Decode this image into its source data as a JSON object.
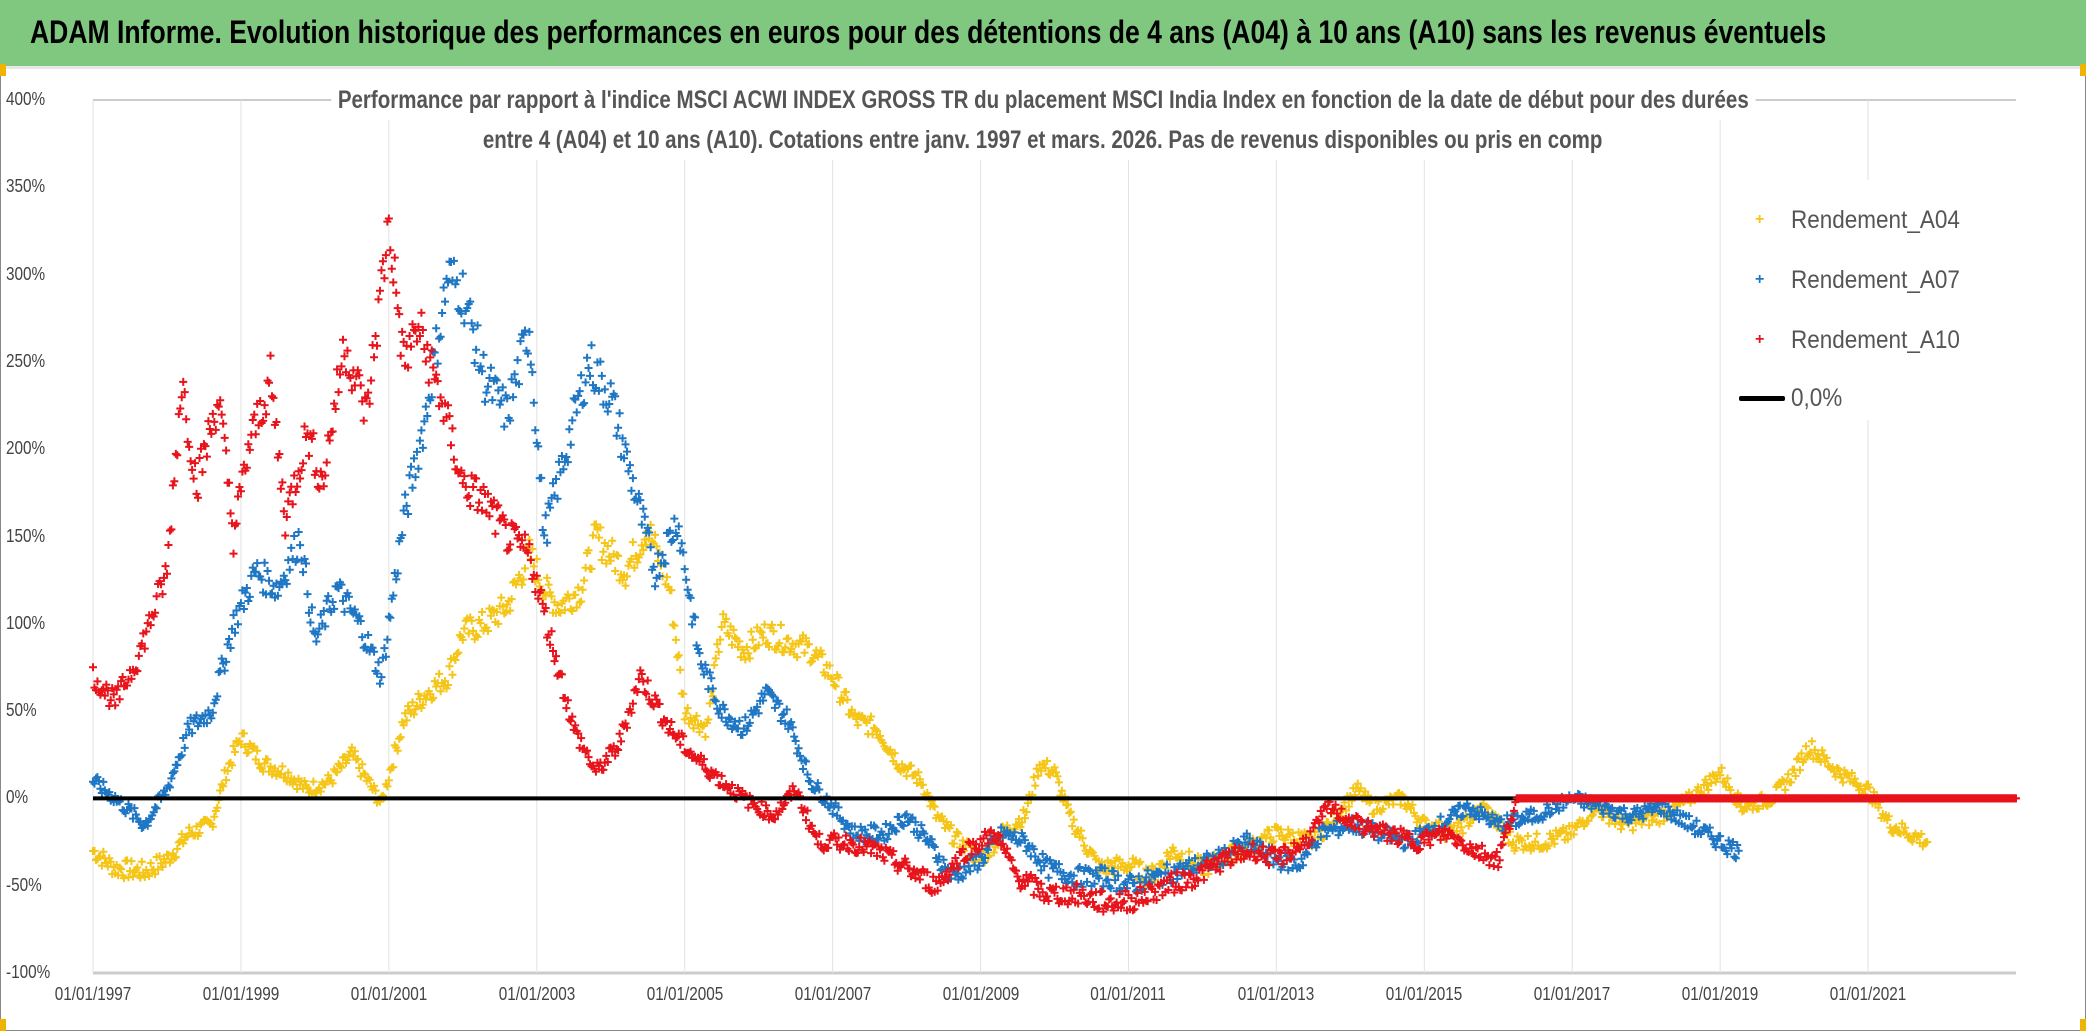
{
  "header": {
    "title": "ADAM Informe. Evolution historique des performances en euros pour des détentions de 4 ans (A04) à 10 ans (A10) sans les revenus éventuels"
  },
  "chart_data": {
    "type": "scatter",
    "title_lines": [
      "Performance par rapport à l'indice MSCI ACWI INDEX GROSS TR  du placement MSCI India Index en fonction de la date de début pour des durées",
      "entre 4 (A04) et 10 ans (A10). Cotations entre janv. 1997 et mars. 2026. Pas de revenus disponibles ou pris en comp"
    ],
    "xlabel": "",
    "ylabel": "",
    "xlim": [
      1997,
      2023
    ],
    "ylim": [
      -100,
      400
    ],
    "x_ticks": [
      1997,
      1999,
      2001,
      2003,
      2005,
      2007,
      2009,
      2011,
      2013,
      2015,
      2017,
      2019,
      2021
    ],
    "x_tick_labels": [
      "01/01/1997",
      "01/01/1999",
      "01/01/2001",
      "01/01/2003",
      "01/01/2005",
      "01/01/2007",
      "01/01/2009",
      "01/01/2011",
      "01/01/2013",
      "01/01/2015",
      "01/01/2017",
      "01/01/2019",
      "01/01/2021"
    ],
    "y_ticks": [
      400,
      350,
      300,
      250,
      200,
      150,
      100,
      50,
      0,
      -50,
      -100
    ],
    "y_tick_labels": [
      "400%",
      "350%",
      "300%",
      "250%",
      "200%",
      "150%",
      "100%",
      "50%",
      "0%",
      "-50%",
      "-100%"
    ],
    "grid": "vertical",
    "legend_position": "top-right",
    "series": [
      {
        "name": "Rendement_A04",
        "color": "#f5c518",
        "points": [
          [
            1997.0,
            -30
          ],
          [
            1997.3,
            -40
          ],
          [
            1997.7,
            -42
          ],
          [
            1998.0,
            -35
          ],
          [
            1998.3,
            -20
          ],
          [
            1998.6,
            -15
          ],
          [
            1998.8,
            15
          ],
          [
            1999.0,
            35
          ],
          [
            1999.3,
            20
          ],
          [
            1999.6,
            15
          ],
          [
            1999.9,
            5
          ],
          [
            2000.2,
            10
          ],
          [
            2000.5,
            25
          ],
          [
            2000.9,
            -3
          ],
          [
            2001.2,
            45
          ],
          [
            2001.5,
            60
          ],
          [
            2001.8,
            70
          ],
          [
            2002.0,
            95
          ],
          [
            2002.3,
            100
          ],
          [
            2002.6,
            110
          ],
          [
            2002.9,
            140
          ],
          [
            2003.1,
            120
          ],
          [
            2003.3,
            110
          ],
          [
            2003.6,
            120
          ],
          [
            2003.8,
            150
          ],
          [
            2004.2,
            130
          ],
          [
            2004.5,
            155
          ],
          [
            2004.8,
            120
          ],
          [
            2005.0,
            50
          ],
          [
            2005.3,
            40
          ],
          [
            2005.5,
            100
          ],
          [
            2005.8,
            85
          ],
          [
            2006.1,
            95
          ],
          [
            2006.4,
            90
          ],
          [
            2006.7,
            85
          ],
          [
            2007.0,
            70
          ],
          [
            2007.3,
            45
          ],
          [
            2007.6,
            40
          ],
          [
            2007.9,
            20
          ],
          [
            2008.2,
            10
          ],
          [
            2008.4,
            -10
          ],
          [
            2008.7,
            -25
          ],
          [
            2009.0,
            -35
          ],
          [
            2009.3,
            -20
          ],
          [
            2009.6,
            -10
          ],
          [
            2009.8,
            20
          ],
          [
            2010.0,
            15
          ],
          [
            2010.2,
            -10
          ],
          [
            2010.6,
            -40
          ],
          [
            2011.0,
            -38
          ],
          [
            2011.3,
            -45
          ],
          [
            2011.6,
            -30
          ],
          [
            2012.0,
            -40
          ],
          [
            2012.5,
            -30
          ],
          [
            2013.0,
            -20
          ],
          [
            2013.5,
            -25
          ],
          [
            2013.8,
            -10
          ],
          [
            2014.1,
            5
          ],
          [
            2014.3,
            -5
          ],
          [
            2014.7,
            0
          ],
          [
            2015.0,
            -15
          ],
          [
            2015.4,
            -20
          ],
          [
            2015.8,
            -5
          ],
          [
            2016.2,
            -25
          ],
          [
            2016.6,
            -25
          ],
          [
            2017.0,
            -20
          ],
          [
            2017.3,
            -5
          ],
          [
            2017.7,
            -15
          ],
          [
            2018.2,
            -10
          ],
          [
            2018.6,
            0
          ],
          [
            2019.0,
            15
          ],
          [
            2019.3,
            -5
          ],
          [
            2019.7,
            0
          ],
          [
            2020.0,
            15
          ],
          [
            2020.2,
            30
          ],
          [
            2020.6,
            15
          ],
          [
            2021.0,
            5
          ],
          [
            2021.3,
            -15
          ],
          [
            2021.8,
            -25
          ]
        ]
      },
      {
        "name": "Rendement_A07",
        "color": "#1f77c4",
        "points": [
          [
            1997.0,
            10
          ],
          [
            1997.3,
            0
          ],
          [
            1997.7,
            -15
          ],
          [
            1998.0,
            5
          ],
          [
            1998.3,
            40
          ],
          [
            1998.6,
            50
          ],
          [
            1998.9,
            100
          ],
          [
            1999.2,
            130
          ],
          [
            1999.5,
            120
          ],
          [
            1999.8,
            150
          ],
          [
            2000.0,
            90
          ],
          [
            2000.3,
            120
          ],
          [
            2000.6,
            100
          ],
          [
            2000.9,
            70
          ],
          [
            2001.2,
            160
          ],
          [
            2001.5,
            220
          ],
          [
            2001.8,
            300
          ],
          [
            2002.0,
            290
          ],
          [
            2002.3,
            240
          ],
          [
            2002.6,
            220
          ],
          [
            2002.9,
            270
          ],
          [
            2003.1,
            150
          ],
          [
            2003.4,
            200
          ],
          [
            2003.7,
            250
          ],
          [
            2004.0,
            230
          ],
          [
            2004.3,
            180
          ],
          [
            2004.6,
            130
          ],
          [
            2004.9,
            160
          ],
          [
            2005.2,
            80
          ],
          [
            2005.5,
            50
          ],
          [
            2005.8,
            40
          ],
          [
            2006.1,
            60
          ],
          [
            2006.4,
            45
          ],
          [
            2006.7,
            10
          ],
          [
            2007.0,
            -5
          ],
          [
            2007.3,
            -20
          ],
          [
            2007.7,
            -20
          ],
          [
            2008.0,
            -10
          ],
          [
            2008.3,
            -25
          ],
          [
            2008.6,
            -45
          ],
          [
            2009.0,
            -35
          ],
          [
            2009.3,
            -20
          ],
          [
            2009.6,
            -25
          ],
          [
            2009.9,
            -40
          ],
          [
            2010.3,
            -45
          ],
          [
            2010.7,
            -45
          ],
          [
            2011.0,
            -50
          ],
          [
            2011.4,
            -45
          ],
          [
            2011.8,
            -40
          ],
          [
            2012.2,
            -35
          ],
          [
            2012.6,
            -25
          ],
          [
            2013.0,
            -35
          ],
          [
            2013.3,
            -38
          ],
          [
            2013.6,
            -20
          ],
          [
            2014.0,
            -15
          ],
          [
            2014.4,
            -20
          ],
          [
            2014.8,
            -25
          ],
          [
            2015.2,
            -15
          ],
          [
            2015.6,
            -5
          ],
          [
            2016.0,
            -15
          ],
          [
            2016.5,
            -10
          ],
          [
            2017.0,
            0
          ],
          [
            2017.4,
            -5
          ],
          [
            2017.8,
            -10
          ],
          [
            2018.2,
            -5
          ],
          [
            2018.6,
            -15
          ],
          [
            2019.0,
            -25
          ],
          [
            2019.25,
            -30
          ]
        ]
      },
      {
        "name": "Rendement_A10",
        "color": "#e8141c",
        "points": [
          [
            1997.0,
            70
          ],
          [
            1997.3,
            55
          ],
          [
            1997.6,
            80
          ],
          [
            1998.0,
            130
          ],
          [
            1998.2,
            240
          ],
          [
            1998.4,
            180
          ],
          [
            1998.7,
            230
          ],
          [
            1998.9,
            150
          ],
          [
            1999.1,
            200
          ],
          [
            1999.4,
            240
          ],
          [
            1999.6,
            160
          ],
          [
            1999.9,
            210
          ],
          [
            2000.1,
            180
          ],
          [
            2000.4,
            260
          ],
          [
            2000.7,
            220
          ],
          [
            2001.0,
            330
          ],
          [
            2001.2,
            250
          ],
          [
            2001.4,
            270
          ],
          [
            2001.7,
            230
          ],
          [
            2002.0,
            180
          ],
          [
            2002.3,
            170
          ],
          [
            2002.6,
            150
          ],
          [
            2002.9,
            140
          ],
          [
            2003.2,
            90
          ],
          [
            2003.5,
            40
          ],
          [
            2003.8,
            15
          ],
          [
            2004.1,
            30
          ],
          [
            2004.4,
            70
          ],
          [
            2004.8,
            40
          ],
          [
            2005.1,
            25
          ],
          [
            2005.5,
            10
          ],
          [
            2005.8,
            0
          ],
          [
            2006.2,
            -10
          ],
          [
            2006.5,
            5
          ],
          [
            2006.8,
            -25
          ],
          [
            2007.2,
            -25
          ],
          [
            2007.6,
            -30
          ],
          [
            2008.0,
            -40
          ],
          [
            2008.4,
            -50
          ],
          [
            2008.8,
            -30
          ],
          [
            2009.2,
            -20
          ],
          [
            2009.5,
            -45
          ],
          [
            2009.9,
            -55
          ],
          [
            2010.3,
            -55
          ],
          [
            2010.7,
            -60
          ],
          [
            2011.1,
            -58
          ],
          [
            2011.5,
            -50
          ],
          [
            2011.9,
            -45
          ],
          [
            2012.3,
            -35
          ],
          [
            2012.7,
            -30
          ],
          [
            2013.0,
            -35
          ],
          [
            2013.4,
            -25
          ],
          [
            2013.7,
            -5
          ],
          [
            2014.1,
            -15
          ],
          [
            2014.5,
            -20
          ],
          [
            2014.9,
            -25
          ],
          [
            2015.3,
            -20
          ],
          [
            2015.7,
            -30
          ],
          [
            2016.0,
            -35
          ],
          [
            2016.25,
            0
          ],
          [
            2023.0,
            0
          ]
        ]
      }
    ],
    "reference_line": {
      "name": "0,0%",
      "value": 0,
      "color": "#000000"
    }
  }
}
